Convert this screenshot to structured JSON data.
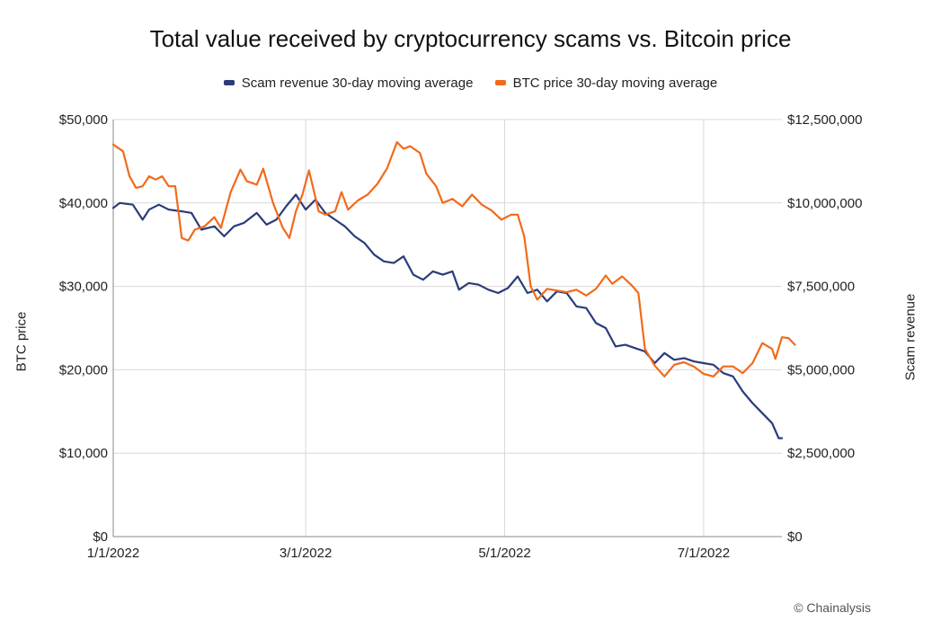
{
  "chart_data": {
    "type": "line",
    "title": "Total value received by cryptocurrency scams vs. Bitcoin price",
    "legend_placement": "top-center",
    "grid": true,
    "x_ticks": [
      "1/1/2022",
      "3/1/2022",
      "5/1/2022",
      "7/1/2022"
    ],
    "xlim": [
      "2022-01-01",
      "2022-07-25"
    ],
    "y_left": {
      "label": "BTC price",
      "range": [
        0,
        50000
      ],
      "ticks": [
        "$0",
        "$10,000",
        "$20,000",
        "$30,000",
        "$40,000",
        "$50,000"
      ]
    },
    "y_right": {
      "label": "Scam revenue",
      "range": [
        0,
        12500000
      ],
      "ticks": [
        "$0",
        "$2,500,000",
        "$5,000,000",
        "$7,500,000",
        "$10,000,000",
        "$12,500,000"
      ]
    },
    "series": [
      {
        "name": "Scam revenue 30-day moving average",
        "axis": "right",
        "color": "#2a3c7a",
        "points": [
          [
            "2022-01-01",
            9850000
          ],
          [
            "2022-01-03",
            10000000
          ],
          [
            "2022-01-07",
            9950000
          ],
          [
            "2022-01-10",
            9500000
          ],
          [
            "2022-01-12",
            9800000
          ],
          [
            "2022-01-15",
            9950000
          ],
          [
            "2022-01-18",
            9800000
          ],
          [
            "2022-01-22",
            9750000
          ],
          [
            "2022-01-25",
            9700000
          ],
          [
            "2022-01-28",
            9200000
          ],
          [
            "2022-02-01",
            9300000
          ],
          [
            "2022-02-04",
            9000000
          ],
          [
            "2022-02-07",
            9300000
          ],
          [
            "2022-02-10",
            9400000
          ],
          [
            "2022-02-14",
            9700000
          ],
          [
            "2022-02-17",
            9350000
          ],
          [
            "2022-02-20",
            9500000
          ],
          [
            "2022-02-23",
            9900000
          ],
          [
            "2022-02-26",
            10250000
          ],
          [
            "2022-03-01",
            9800000
          ],
          [
            "2022-03-04",
            10100000
          ],
          [
            "2022-03-07",
            9700000
          ],
          [
            "2022-03-10",
            9500000
          ],
          [
            "2022-03-13",
            9300000
          ],
          [
            "2022-03-16",
            9000000
          ],
          [
            "2022-03-19",
            8800000
          ],
          [
            "2022-03-22",
            8450000
          ],
          [
            "2022-03-25",
            8250000
          ],
          [
            "2022-03-28",
            8200000
          ],
          [
            "2022-03-31",
            8400000
          ],
          [
            "2022-04-03",
            7850000
          ],
          [
            "2022-04-06",
            7700000
          ],
          [
            "2022-04-09",
            7950000
          ],
          [
            "2022-04-12",
            7850000
          ],
          [
            "2022-04-15",
            7950000
          ],
          [
            "2022-04-17",
            7400000
          ],
          [
            "2022-04-20",
            7600000
          ],
          [
            "2022-04-23",
            7550000
          ],
          [
            "2022-04-26",
            7400000
          ],
          [
            "2022-04-29",
            7300000
          ],
          [
            "2022-05-02",
            7450000
          ],
          [
            "2022-05-05",
            7800000
          ],
          [
            "2022-05-08",
            7300000
          ],
          [
            "2022-05-11",
            7400000
          ],
          [
            "2022-05-14",
            7050000
          ],
          [
            "2022-05-17",
            7350000
          ],
          [
            "2022-05-20",
            7300000
          ],
          [
            "2022-05-23",
            6900000
          ],
          [
            "2022-05-26",
            6850000
          ],
          [
            "2022-05-29",
            6400000
          ],
          [
            "2022-06-01",
            6250000
          ],
          [
            "2022-06-04",
            5700000
          ],
          [
            "2022-06-07",
            5750000
          ],
          [
            "2022-06-10",
            5650000
          ],
          [
            "2022-06-13",
            5550000
          ],
          [
            "2022-06-16",
            5200000
          ],
          [
            "2022-06-19",
            5500000
          ],
          [
            "2022-06-22",
            5300000
          ],
          [
            "2022-06-25",
            5350000
          ],
          [
            "2022-06-28",
            5250000
          ],
          [
            "2022-07-01",
            5200000
          ],
          [
            "2022-07-04",
            5150000
          ],
          [
            "2022-07-07",
            4900000
          ],
          [
            "2022-07-10",
            4800000
          ],
          [
            "2022-07-13",
            4350000
          ],
          [
            "2022-07-16",
            4000000
          ],
          [
            "2022-07-19",
            3700000
          ],
          [
            "2022-07-22",
            3400000
          ],
          [
            "2022-07-24",
            2950000
          ],
          [
            "2022-07-25",
            2950000
          ]
        ]
      },
      {
        "name": "BTC price 30-day moving average",
        "axis": "left",
        "color": "#f26a1b",
        "points": [
          [
            "2022-01-01",
            47000
          ],
          [
            "2022-01-04",
            46200
          ],
          [
            "2022-01-06",
            43200
          ],
          [
            "2022-01-08",
            41800
          ],
          [
            "2022-01-10",
            42000
          ],
          [
            "2022-01-12",
            43200
          ],
          [
            "2022-01-14",
            42800
          ],
          [
            "2022-01-16",
            43200
          ],
          [
            "2022-01-18",
            42000
          ],
          [
            "2022-01-20",
            42000
          ],
          [
            "2022-01-22",
            35800
          ],
          [
            "2022-01-24",
            35500
          ],
          [
            "2022-01-26",
            36800
          ],
          [
            "2022-01-29",
            37200
          ],
          [
            "2022-02-01",
            38300
          ],
          [
            "2022-02-03",
            37000
          ],
          [
            "2022-02-06",
            41300
          ],
          [
            "2022-02-09",
            44000
          ],
          [
            "2022-02-11",
            42600
          ],
          [
            "2022-02-14",
            42200
          ],
          [
            "2022-02-16",
            44100
          ],
          [
            "2022-02-19",
            40000
          ],
          [
            "2022-02-22",
            37000
          ],
          [
            "2022-02-24",
            35800
          ],
          [
            "2022-02-26",
            39000
          ],
          [
            "2022-02-28",
            41000
          ],
          [
            "2022-03-02",
            43900
          ],
          [
            "2022-03-05",
            39000
          ],
          [
            "2022-03-07",
            38600
          ],
          [
            "2022-03-10",
            39000
          ],
          [
            "2022-03-12",
            41300
          ],
          [
            "2022-03-14",
            39200
          ],
          [
            "2022-03-17",
            40300
          ],
          [
            "2022-03-20",
            41000
          ],
          [
            "2022-03-23",
            42300
          ],
          [
            "2022-03-26",
            44200
          ],
          [
            "2022-03-29",
            47300
          ],
          [
            "2022-03-31",
            46500
          ],
          [
            "2022-04-02",
            46800
          ],
          [
            "2022-04-05",
            46000
          ],
          [
            "2022-04-07",
            43500
          ],
          [
            "2022-04-10",
            42000
          ],
          [
            "2022-04-12",
            40000
          ],
          [
            "2022-04-15",
            40500
          ],
          [
            "2022-04-18",
            39600
          ],
          [
            "2022-04-21",
            41000
          ],
          [
            "2022-04-24",
            39800
          ],
          [
            "2022-04-27",
            39100
          ],
          [
            "2022-04-30",
            38000
          ],
          [
            "2022-05-03",
            38600
          ],
          [
            "2022-05-05",
            38600
          ],
          [
            "2022-05-07",
            36000
          ],
          [
            "2022-05-09",
            30000
          ],
          [
            "2022-05-11",
            28400
          ],
          [
            "2022-05-14",
            29700
          ],
          [
            "2022-05-17",
            29500
          ],
          [
            "2022-05-20",
            29300
          ],
          [
            "2022-05-23",
            29600
          ],
          [
            "2022-05-26",
            28900
          ],
          [
            "2022-05-29",
            29700
          ],
          [
            "2022-06-01",
            31300
          ],
          [
            "2022-06-03",
            30300
          ],
          [
            "2022-06-06",
            31200
          ],
          [
            "2022-06-09",
            30100
          ],
          [
            "2022-06-11",
            29200
          ],
          [
            "2022-06-13",
            22500
          ],
          [
            "2022-06-16",
            20500
          ],
          [
            "2022-06-19",
            19200
          ],
          [
            "2022-06-22",
            20600
          ],
          [
            "2022-06-25",
            20900
          ],
          [
            "2022-06-28",
            20400
          ],
          [
            "2022-07-01",
            19500
          ],
          [
            "2022-07-04",
            19200
          ],
          [
            "2022-07-07",
            20400
          ],
          [
            "2022-07-10",
            20400
          ],
          [
            "2022-07-13",
            19600
          ],
          [
            "2022-07-16",
            20800
          ],
          [
            "2022-07-19",
            23200
          ],
          [
            "2022-07-22",
            22500
          ],
          [
            "2022-07-23",
            21300
          ],
          [
            "2022-07-25",
            23900
          ],
          [
            "2022-07-27",
            23800
          ],
          [
            "2022-07-29",
            23000
          ]
        ]
      }
    ]
  },
  "source_credit": "© Chainalysis"
}
